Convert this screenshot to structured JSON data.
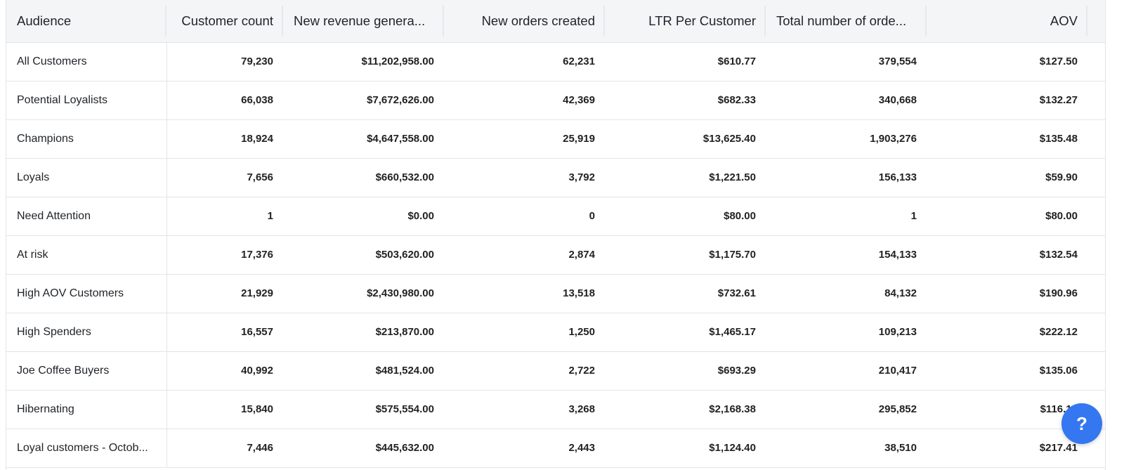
{
  "table": {
    "columns": [
      {
        "key": "audience",
        "label": "Audience",
        "align": "left"
      },
      {
        "key": "customer_count",
        "label": "Customer count",
        "align": "right"
      },
      {
        "key": "new_revenue",
        "label": "New revenue genera...",
        "align": "left"
      },
      {
        "key": "new_orders",
        "label": "New orders created",
        "align": "right"
      },
      {
        "key": "ltr_per_customer",
        "label": "LTR Per Customer",
        "align": "right"
      },
      {
        "key": "total_orders",
        "label": "Total number of orde...",
        "align": "left"
      },
      {
        "key": "aov",
        "label": "AOV",
        "align": "right"
      }
    ],
    "rows": [
      {
        "audience": "All Customers",
        "customer_count": "79,230",
        "new_revenue": "$11,202,958.00",
        "new_orders": "62,231",
        "ltr_per_customer": "$610.77",
        "total_orders": "379,554",
        "aov": "$127.50"
      },
      {
        "audience": "Potential Loyalists",
        "customer_count": "66,038",
        "new_revenue": "$7,672,626.00",
        "new_orders": "42,369",
        "ltr_per_customer": "$682.33",
        "total_orders": "340,668",
        "aov": "$132.27"
      },
      {
        "audience": "Champions",
        "customer_count": "18,924",
        "new_revenue": "$4,647,558.00",
        "new_orders": "25,919",
        "ltr_per_customer": "$13,625.40",
        "total_orders": "1,903,276",
        "aov": "$135.48"
      },
      {
        "audience": "Loyals",
        "customer_count": "7,656",
        "new_revenue": "$660,532.00",
        "new_orders": "3,792",
        "ltr_per_customer": "$1,221.50",
        "total_orders": "156,133",
        "aov": "$59.90"
      },
      {
        "audience": "Need Attention",
        "customer_count": "1",
        "new_revenue": "$0.00",
        "new_orders": "0",
        "ltr_per_customer": "$80.00",
        "total_orders": "1",
        "aov": "$80.00"
      },
      {
        "audience": "At risk",
        "customer_count": "17,376",
        "new_revenue": "$503,620.00",
        "new_orders": "2,874",
        "ltr_per_customer": "$1,175.70",
        "total_orders": "154,133",
        "aov": "$132.54"
      },
      {
        "audience": "High AOV Customers",
        "customer_count": "21,929",
        "new_revenue": "$2,430,980.00",
        "new_orders": "13,518",
        "ltr_per_customer": "$732.61",
        "total_orders": "84,132",
        "aov": "$190.96"
      },
      {
        "audience": "High Spenders",
        "customer_count": "16,557",
        "new_revenue": "$213,870.00",
        "new_orders": "1,250",
        "ltr_per_customer": "$1,465.17",
        "total_orders": "109,213",
        "aov": "$222.12"
      },
      {
        "audience": "Joe Coffee Buyers",
        "customer_count": "40,992",
        "new_revenue": "$481,524.00",
        "new_orders": "2,722",
        "ltr_per_customer": "$693.29",
        "total_orders": "210,417",
        "aov": "$135.06"
      },
      {
        "audience": "Hibernating",
        "customer_count": "15,840",
        "new_revenue": "$575,554.00",
        "new_orders": "3,268",
        "ltr_per_customer": "$2,168.38",
        "total_orders": "295,852",
        "aov": "$116.10"
      },
      {
        "audience": "Loyal customers - Octob...",
        "customer_count": "7,446",
        "new_revenue": "$445,632.00",
        "new_orders": "2,443",
        "ltr_per_customer": "$1,124.40",
        "total_orders": "38,510",
        "aov": "$217.41"
      }
    ]
  },
  "help": {
    "label": "?",
    "icon": "help-icon",
    "color": "#3477f0"
  },
  "colors": {
    "header_bg": "#f4f5f7",
    "border": "#e3e5e8"
  }
}
